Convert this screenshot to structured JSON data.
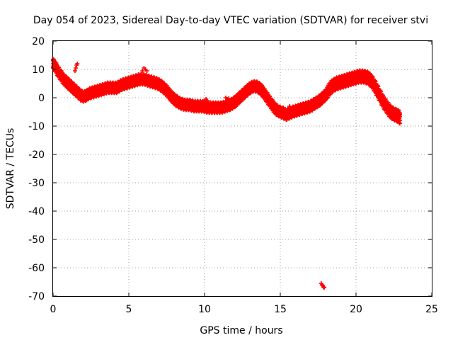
{
  "chart_data": {
    "type": "scatter",
    "title": "Day 054 of 2023, Sidereal Day-to-day VTEC variation (SDTVAR) for receiver stvi",
    "xlabel": "GPS time / hours",
    "ylabel": "SDTVAR / TECUs",
    "xlim": [
      0,
      25
    ],
    "ylim": [
      -70,
      20
    ],
    "xticks": [
      0,
      5,
      10,
      15,
      20,
      25
    ],
    "yticks": [
      -70,
      -60,
      -50,
      -40,
      -30,
      -20,
      -10,
      0,
      10,
      20
    ],
    "grid": true,
    "marker": "plus",
    "series": [
      {
        "name": "SDTVAR",
        "color": "#ff0000",
        "bands": [
          {
            "x": [
              0.0,
              0.15,
              0.3,
              0.5,
              0.7,
              0.9,
              1.1,
              1.3,
              1.5,
              1.7,
              1.9,
              2.1,
              2.4,
              2.7,
              3.0,
              3.3,
              3.6,
              3.9,
              4.2,
              4.5,
              4.8,
              5.1,
              5.4,
              5.7,
              6.0,
              6.3,
              6.6,
              6.9,
              7.2,
              7.5,
              7.8,
              8.1,
              8.4,
              8.7,
              9.0,
              9.3,
              9.6,
              9.9,
              10.2,
              10.5,
              10.8,
              11.1,
              11.4,
              11.7,
              12.0,
              12.3,
              12.6,
              12.9,
              13.2,
              13.4,
              13.6,
              13.8,
              14.0,
              14.2,
              14.4,
              14.6,
              14.8,
              15.0,
              15.2,
              15.4,
              15.6,
              15.8,
              16.1,
              16.4,
              16.7,
              17.0,
              17.3,
              17.6,
              17.9,
              18.1
            ],
            "y": [
              12,
              11,
              9.5,
              8,
              6.5,
              5.5,
              4.5,
              3.5,
              2.5,
              1.5,
              0.5,
              0.5,
              1.5,
              2.0,
              2.5,
              3.0,
              3.5,
              3.5,
              3.5,
              4.5,
              5.0,
              5.5,
              6.0,
              6.5,
              6.5,
              6.0,
              5.5,
              5.0,
              4.0,
              2.5,
              0.5,
              -1.0,
              -2.0,
              -2.5,
              -2.5,
              -3.0,
              -3.0,
              -3.0,
              -3.5,
              -3.5,
              -3.5,
              -3.5,
              -3.0,
              -2.5,
              -1.5,
              0,
              1.5,
              3.0,
              4.0,
              4.0,
              3.5,
              2.5,
              1.0,
              -0.5,
              -2.0,
              -3.5,
              -4.5,
              -5.0,
              -5.5,
              -6.0,
              -5.5,
              -5.0,
              -4.5,
              -4.0,
              -3.5,
              -3.0,
              -2.0,
              -1.0,
              0.5,
              1.5
            ],
            "spread": 1.5
          },
          {
            "x": [
              18.1,
              18.4,
              18.7,
              19.0,
              19.3,
              19.6,
              19.9,
              20.2,
              20.5,
              20.8,
              21.0,
              21.2,
              21.4,
              21.6,
              21.8,
              22.0,
              22.2,
              22.4,
              22.6,
              22.8,
              22.9
            ],
            "y": [
              2.0,
              4.0,
              5.0,
              5.5,
              6.0,
              6.5,
              7.0,
              7.5,
              7.5,
              7.0,
              6.0,
              4.5,
              2.5,
              0.5,
              -1.5,
              -3.0,
              -4.5,
              -5.5,
              -6.0,
              -6.5,
              -7.0
            ],
            "spread": 1.8
          }
        ],
        "outliers": [
          {
            "x": [
              1.45,
              1.5,
              1.55,
              1.6
            ],
            "y": [
              9.5,
              10.5,
              11.5,
              12.0
            ]
          },
          {
            "x": [
              5.9,
              6.0,
              6.1,
              6.2
            ],
            "y": [
              9.5,
              10.5,
              10.0,
              9.5
            ]
          },
          {
            "x": [
              10.0,
              10.1,
              10.2
            ],
            "y": [
              -1.0,
              -0.5,
              -1.0
            ]
          },
          {
            "x": [
              11.4,
              11.5,
              11.6
            ],
            "y": [
              0.0,
              -0.5,
              -0.2
            ]
          },
          {
            "x": [
              15.2,
              15.4,
              15.6
            ],
            "y": [
              -3.5,
              -4.5,
              -3.0
            ]
          },
          {
            "x": [
              17.7,
              17.75,
              17.8,
              17.85,
              17.9
            ],
            "y": [
              -65.5,
              -66.0,
              -66.3,
              -66.8,
              -67.0
            ]
          }
        ]
      }
    ]
  }
}
